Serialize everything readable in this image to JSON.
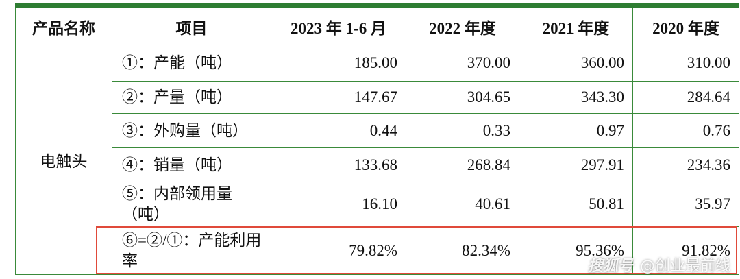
{
  "header": {
    "columns": [
      "产品名称",
      "项目",
      "2023 年 1-6 月",
      "2022 年度",
      "2021 年度",
      "2020 年度"
    ]
  },
  "table": {
    "product": "电触头",
    "rows": [
      [
        "①：产能（吨）",
        "185.00",
        "370.00",
        "360.00",
        "310.00"
      ],
      [
        "②：产量（吨）",
        "147.67",
        "304.65",
        "343.30",
        "284.64"
      ],
      [
        "③：外购量（吨）",
        "0.44",
        "0.33",
        "0.97",
        "0.76"
      ],
      [
        "④：销量（吨）",
        "133.68",
        "268.84",
        "297.91",
        "234.36"
      ],
      [
        "⑤：内部领用量（吨）",
        "16.10",
        "40.61",
        "50.81",
        "35.97"
      ],
      [
        "⑥=②/①：产能利用率",
        "79.82%",
        "82.34%",
        "95.36%",
        "91.82%"
      ]
    ]
  },
  "watermark": {
    "logo": "搜狐号",
    "text": "@创业最前线"
  }
}
